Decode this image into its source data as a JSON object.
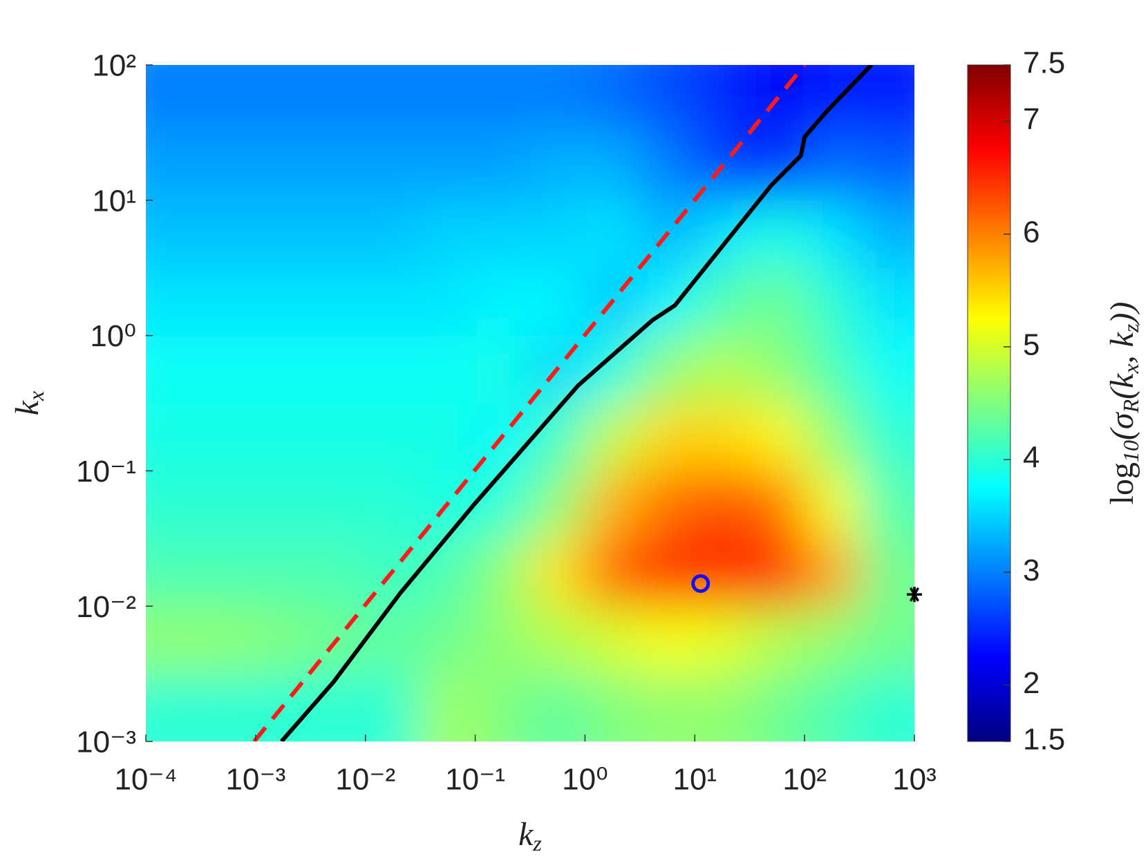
{
  "chart_data": {
    "type": "heatmap",
    "xscale": "log",
    "yscale": "log",
    "xlabel": {
      "symbol": "k",
      "subscript": "z"
    },
    "ylabel": {
      "symbol": "k",
      "subscript": "x"
    },
    "colorbar_label": [
      "log",
      "10",
      "(σ",
      "R",
      "(k",
      "x",
      ", k",
      "z",
      "))"
    ],
    "xlim": [
      0.0001,
      1000
    ],
    "ylim": [
      0.001,
      100
    ],
    "xticks": [
      {
        "value": 0.0001,
        "label": "10⁻⁴"
      },
      {
        "value": 0.001,
        "label": "10⁻³"
      },
      {
        "value": 0.01,
        "label": "10⁻²"
      },
      {
        "value": 0.1,
        "label": "10⁻¹"
      },
      {
        "value": 1,
        "label": "10⁰"
      },
      {
        "value": 10,
        "label": "10¹"
      },
      {
        "value": 100,
        "label": "10²"
      },
      {
        "value": 1000,
        "label": "10³"
      }
    ],
    "yticks": [
      {
        "value": 0.001,
        "label": "10⁻³"
      },
      {
        "value": 0.01,
        "label": "10⁻²"
      },
      {
        "value": 0.1,
        "label": "10⁻¹"
      },
      {
        "value": 1,
        "label": "10⁰"
      },
      {
        "value": 10,
        "label": "10¹"
      },
      {
        "value": 100,
        "label": "10²"
      }
    ],
    "colormap": "jet",
    "clim": [
      1.5,
      7.5
    ],
    "cticks": [
      1.5,
      2,
      3,
      4,
      5,
      6,
      7,
      7.5
    ],
    "xbins": [
      0.0001,
      0.000316,
      0.001,
      0.00316,
      0.01,
      0.0316,
      0.1,
      0.316,
      1,
      3.16,
      10,
      31.6,
      100,
      316,
      1000
    ],
    "ybins": [
      0.001,
      0.00316,
      0.01,
      0.0316,
      0.1,
      0.316,
      1,
      3.16,
      10,
      31.6,
      100
    ],
    "z": [
      [
        4.0,
        4.0,
        4.0,
        4.0,
        4.0,
        4.7,
        4.5,
        4.3,
        4.5,
        4.6,
        4.6,
        4.4,
        4.2,
        4.0
      ],
      [
        4.6,
        4.6,
        4.5,
        4.4,
        4.3,
        4.4,
        4.6,
        4.8,
        5.0,
        5.2,
        5.1,
        4.8,
        4.6,
        4.4
      ],
      [
        4.2,
        4.2,
        4.2,
        4.2,
        4.1,
        4.2,
        4.6,
        5.4,
        6.2,
        6.6,
        6.6,
        6.6,
        5.8,
        4.4
      ],
      [
        4.0,
        4.0,
        4.0,
        4.0,
        4.0,
        3.9,
        4.0,
        4.6,
        5.7,
        6.1,
        6.3,
        6.1,
        5.2,
        4.2
      ],
      [
        3.9,
        3.9,
        3.9,
        3.9,
        3.9,
        3.9,
        3.7,
        4.1,
        4.9,
        5.5,
        5.5,
        5.3,
        4.6,
        4.0
      ],
      [
        3.8,
        3.8,
        3.8,
        3.8,
        3.8,
        3.8,
        3.9,
        3.5,
        3.9,
        4.6,
        4.8,
        4.6,
        4.2,
        3.8
      ],
      [
        3.6,
        3.6,
        3.6,
        3.6,
        3.6,
        3.6,
        3.7,
        3.7,
        3.4,
        3.7,
        4.2,
        4.4,
        4.0,
        3.6
      ],
      [
        3.4,
        3.4,
        3.4,
        3.4,
        3.4,
        3.5,
        3.5,
        3.5,
        3.6,
        3.3,
        3.6,
        3.9,
        3.6,
        3.3
      ],
      [
        3.2,
        3.2,
        3.2,
        3.2,
        3.2,
        3.2,
        3.2,
        3.3,
        3.3,
        3.0,
        2.6,
        2.5,
        2.9,
        2.8
      ],
      [
        3.0,
        3.0,
        3.0,
        3.0,
        3.0,
        3.0,
        3.0,
        3.0,
        2.9,
        2.7,
        2.5,
        2.2,
        2.4,
        2.4
      ]
    ],
    "lines": [
      {
        "color": "#ff1a1a",
        "style": "dashed",
        "x": [
          0.00097,
          100
        ],
        "y": [
          0.001,
          100
        ]
      },
      {
        "color": "#000000",
        "style": "solid",
        "x": [
          0.00172,
          0.00512,
          0.0208,
          0.0984,
          0.869,
          4.12,
          6.58,
          14.3,
          49.7,
          92.5,
          100,
          160,
          406
        ],
        "y": [
          0.001,
          0.00275,
          0.0125,
          0.0568,
          0.429,
          1.3,
          1.67,
          3.66,
          12.9,
          21.4,
          29.4,
          45.7,
          100
        ]
      }
    ],
    "markers": [
      {
        "marker": "o",
        "color": "#1010ff",
        "x": 11.3,
        "y": 0.0147
      },
      {
        "marker": "*",
        "color": "#000000",
        "x": 1000,
        "y": 0.0122
      }
    ]
  }
}
